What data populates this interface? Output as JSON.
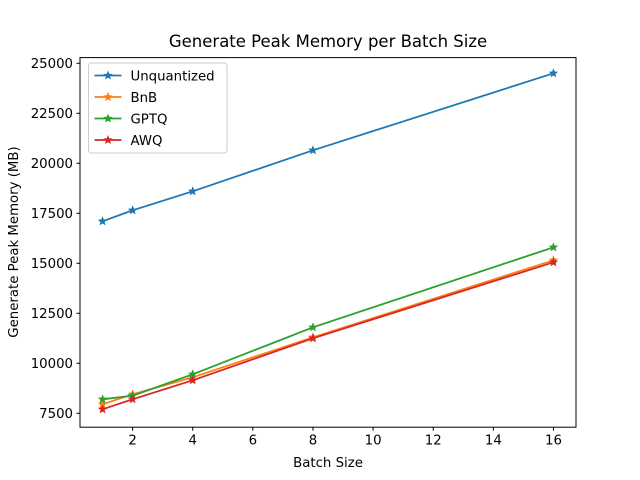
{
  "figure": {
    "background": "#ffffff",
    "text_color": "#000000",
    "spine_color": "#000000"
  },
  "chart_data": {
    "type": "line",
    "title": "Generate Peak Memory per Batch Size",
    "xlabel": "Batch Size",
    "ylabel": "Generate Peak Memory (MB)",
    "x": [
      1,
      2,
      4,
      8,
      16
    ],
    "series": [
      {
        "name": "Unquantized",
        "color": "#1f77b4",
        "marker": "star",
        "values": [
          17100,
          17650,
          18600,
          20650,
          24500
        ]
      },
      {
        "name": "BnB",
        "color": "#ff7f0e",
        "marker": "star",
        "values": [
          7950,
          8450,
          9300,
          11300,
          15150
        ]
      },
      {
        "name": "GPTQ",
        "color": "#2ca02c",
        "marker": "star",
        "values": [
          8200,
          8380,
          9450,
          11800,
          15800
        ]
      },
      {
        "name": "AWQ",
        "color": "#d62728",
        "marker": "star",
        "values": [
          7700,
          8200,
          9150,
          11250,
          15050
        ]
      }
    ],
    "xticks": [
      2,
      4,
      6,
      8,
      10,
      12,
      14,
      16
    ],
    "yticks": [
      7500,
      10000,
      12500,
      15000,
      17500,
      20000,
      22500,
      25000
    ],
    "xlim": [
      0.25,
      16.75
    ],
    "ylim": [
      6805,
      25285
    ],
    "grid": false,
    "legend": {
      "position": "upper-left",
      "frame_color": "#cccccc",
      "background": "#ffffff",
      "entries": [
        "Unquantized",
        "BnB",
        "GPTQ",
        "AWQ"
      ]
    }
  }
}
